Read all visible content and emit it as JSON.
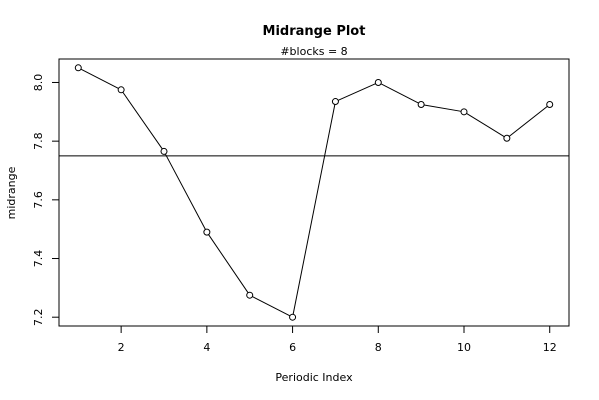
{
  "chart_data": {
    "type": "line",
    "title": "Midrange Plot",
    "subtitle": "#blocks =  8",
    "xlabel": "Periodic Index",
    "ylabel": "midrange",
    "x": [
      1,
      2,
      3,
      4,
      5,
      6,
      7,
      8,
      9,
      10,
      11,
      12
    ],
    "series": [
      {
        "values": [
          8.05,
          7.975,
          7.765,
          7.49,
          7.275,
          7.2,
          7.935,
          8.0,
          7.925,
          7.9,
          7.81,
          7.925
        ]
      }
    ],
    "reference_line": {
      "y": 7.75
    },
    "xlim": [
      0.55,
      12.45
    ],
    "ylim": [
      7.17,
      8.08
    ],
    "xticks": [
      2,
      4,
      6,
      8,
      10,
      12
    ],
    "xtick_labels": [
      "2",
      "4",
      "6",
      "8",
      "10",
      "12"
    ],
    "yticks": [
      7.2,
      7.4,
      7.6,
      7.8,
      8.0
    ],
    "ytick_labels": [
      "7.2",
      "7.4",
      "7.6",
      "7.8",
      "8.0"
    ],
    "marker": "open-circle",
    "grid": false,
    "legend": "none"
  }
}
